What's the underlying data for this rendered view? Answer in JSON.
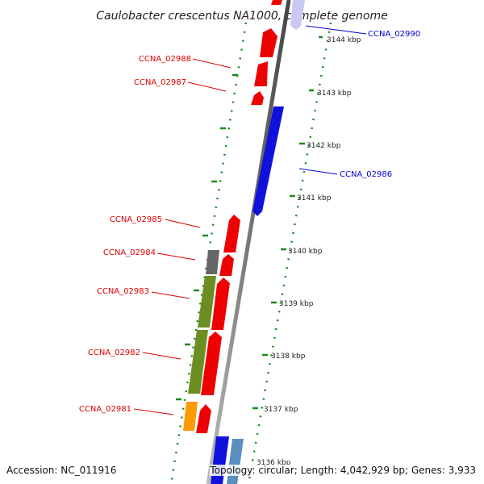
{
  "title": "Caulobacter crescentus NA1000, complete genome",
  "footer": {
    "accession": "Accession: NC_011916",
    "summary": "Topology: circular; Length: 4,042,929 bp; Genes: 3,933"
  },
  "colors": {
    "forward_cds": "#ee0000",
    "reverse_cds": "#1111dd",
    "olive_feature": "#6b8e23",
    "gray_feature": "#666666",
    "orange_feature": "#ff9900",
    "pale_feature": "#c8c8f5",
    "steel_feature": "#5a8fc0",
    "tick_green": "#1a8a1a",
    "backbone": "#777777",
    "forward_label": "#dd0000",
    "reverse_label": "#0000cc"
  },
  "ticks": [
    "3144 kbp",
    "3143 kbp",
    "3142 kbp",
    "3141 kbp",
    "3140 kbp",
    "3139 kbp",
    "3138 kbp",
    "3137 kbp",
    "3136 kbp"
  ],
  "labels": [
    {
      "id": "CCNA_02990",
      "strand": "reverse"
    },
    {
      "id": "CCNA_02988",
      "strand": "forward"
    },
    {
      "id": "CCNA_02987",
      "strand": "forward"
    },
    {
      "id": "CCNA_02986",
      "strand": "reverse"
    },
    {
      "id": "CCNA_02985",
      "strand": "forward"
    },
    {
      "id": "CCNA_02984",
      "strand": "forward"
    },
    {
      "id": "CCNA_02983",
      "strand": "forward"
    },
    {
      "id": "CCNA_02982",
      "strand": "forward"
    },
    {
      "id": "CCNA_02981",
      "strand": "forward"
    }
  ]
}
